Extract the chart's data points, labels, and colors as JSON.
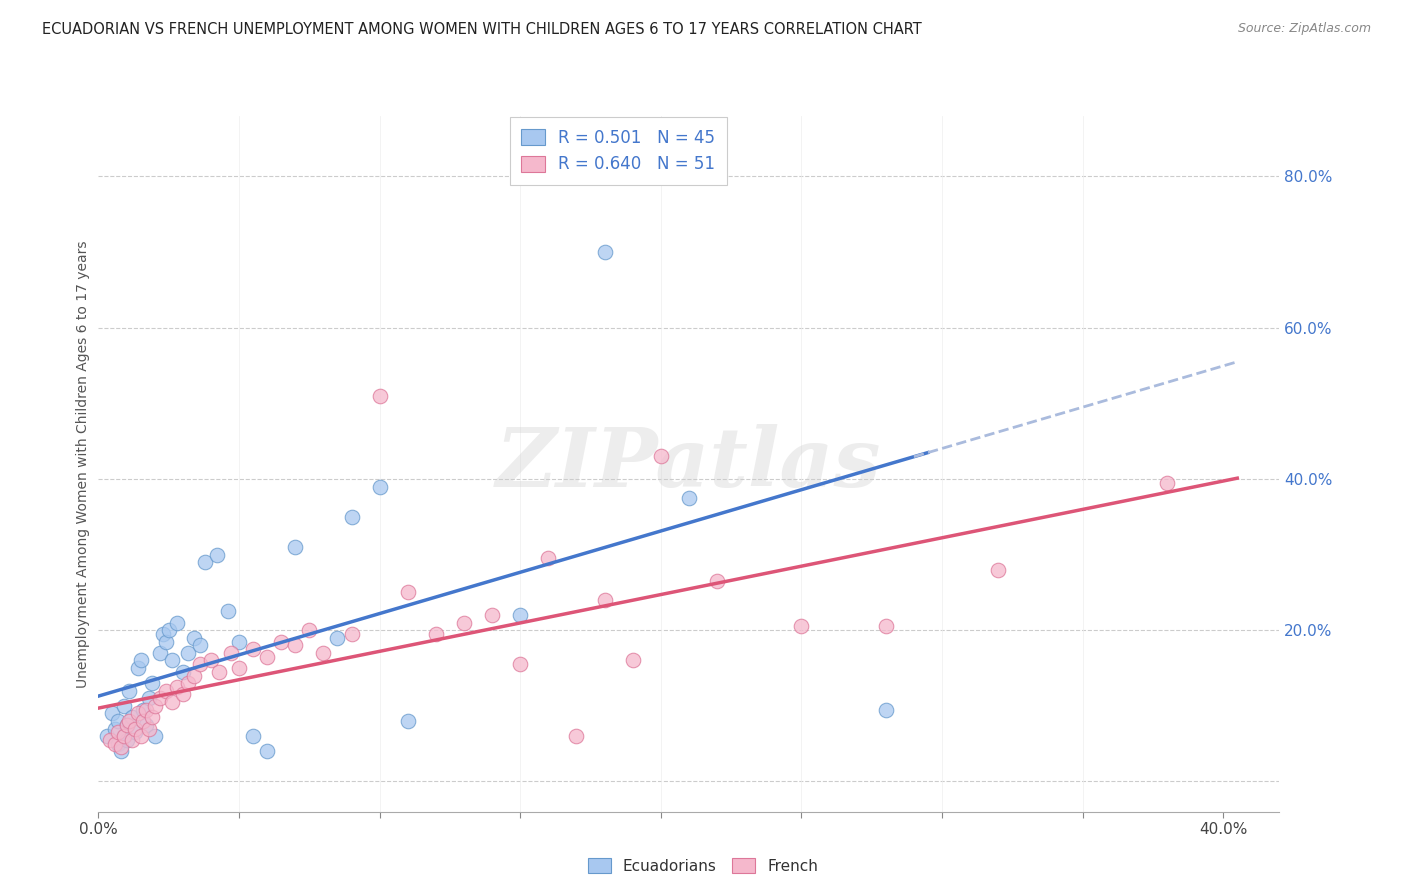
{
  "title": "ECUADORIAN VS FRENCH UNEMPLOYMENT AMONG WOMEN WITH CHILDREN AGES 6 TO 17 YEARS CORRELATION CHART",
  "source": "Source: ZipAtlas.com",
  "ylabel": "Unemployment Among Women with Children Ages 6 to 17 years",
  "xlim": [
    0.0,
    0.42
  ],
  "ylim": [
    -0.04,
    0.88
  ],
  "x_tick_positions": [
    0.0,
    0.05,
    0.1,
    0.15,
    0.2,
    0.25,
    0.3,
    0.35,
    0.4
  ],
  "x_tick_labels": [
    "0.0%",
    "",
    "",
    "",
    "",
    "",
    "",
    "",
    "40.0%"
  ],
  "y_tick_positions": [
    0.0,
    0.2,
    0.4,
    0.6,
    0.8
  ],
  "y_tick_labels": [
    "",
    "20.0%",
    "40.0%",
    "60.0%",
    "80.0%"
  ],
  "r_ecu": 0.501,
  "n_ecu": 45,
  "r_fre": 0.64,
  "n_fre": 51,
  "ecu_color": "#A8C8F0",
  "fre_color": "#F5B8CC",
  "ecu_edge_color": "#6699CC",
  "fre_edge_color": "#DD7799",
  "ecu_line_color": "#4477CC",
  "fre_line_color": "#DD5577",
  "dash_color": "#AABBDD",
  "ytick_color": "#4477CC",
  "watermark_text": "ZIPatlas",
  "background_color": "#FFFFFF",
  "ecuadorians_x": [
    0.003,
    0.005,
    0.006,
    0.007,
    0.007,
    0.008,
    0.009,
    0.009,
    0.01,
    0.01,
    0.011,
    0.012,
    0.013,
    0.014,
    0.015,
    0.016,
    0.017,
    0.018,
    0.019,
    0.02,
    0.022,
    0.023,
    0.024,
    0.025,
    0.026,
    0.028,
    0.03,
    0.032,
    0.034,
    0.036,
    0.038,
    0.042,
    0.046,
    0.05,
    0.055,
    0.06,
    0.07,
    0.085,
    0.09,
    0.1,
    0.11,
    0.15,
    0.18,
    0.21,
    0.28
  ],
  "ecuadorians_y": [
    0.06,
    0.09,
    0.07,
    0.05,
    0.08,
    0.04,
    0.06,
    0.1,
    0.075,
    0.055,
    0.12,
    0.085,
    0.065,
    0.15,
    0.16,
    0.095,
    0.075,
    0.11,
    0.13,
    0.06,
    0.17,
    0.195,
    0.185,
    0.2,
    0.16,
    0.21,
    0.145,
    0.17,
    0.19,
    0.18,
    0.29,
    0.3,
    0.225,
    0.185,
    0.06,
    0.04,
    0.31,
    0.19,
    0.35,
    0.39,
    0.08,
    0.22,
    0.7,
    0.375,
    0.095
  ],
  "french_x": [
    0.004,
    0.006,
    0.007,
    0.008,
    0.009,
    0.01,
    0.011,
    0.012,
    0.013,
    0.014,
    0.015,
    0.016,
    0.017,
    0.018,
    0.019,
    0.02,
    0.022,
    0.024,
    0.026,
    0.028,
    0.03,
    0.032,
    0.034,
    0.036,
    0.04,
    0.043,
    0.047,
    0.05,
    0.055,
    0.06,
    0.065,
    0.07,
    0.075,
    0.08,
    0.09,
    0.1,
    0.11,
    0.12,
    0.13,
    0.14,
    0.15,
    0.16,
    0.17,
    0.18,
    0.19,
    0.2,
    0.22,
    0.25,
    0.28,
    0.32,
    0.38
  ],
  "french_y": [
    0.055,
    0.05,
    0.065,
    0.045,
    0.06,
    0.075,
    0.08,
    0.055,
    0.07,
    0.09,
    0.06,
    0.08,
    0.095,
    0.07,
    0.085,
    0.1,
    0.11,
    0.12,
    0.105,
    0.125,
    0.115,
    0.13,
    0.14,
    0.155,
    0.16,
    0.145,
    0.17,
    0.15,
    0.175,
    0.165,
    0.185,
    0.18,
    0.2,
    0.17,
    0.195,
    0.51,
    0.25,
    0.195,
    0.21,
    0.22,
    0.155,
    0.295,
    0.06,
    0.24,
    0.16,
    0.43,
    0.265,
    0.205,
    0.205,
    0.28,
    0.395
  ]
}
